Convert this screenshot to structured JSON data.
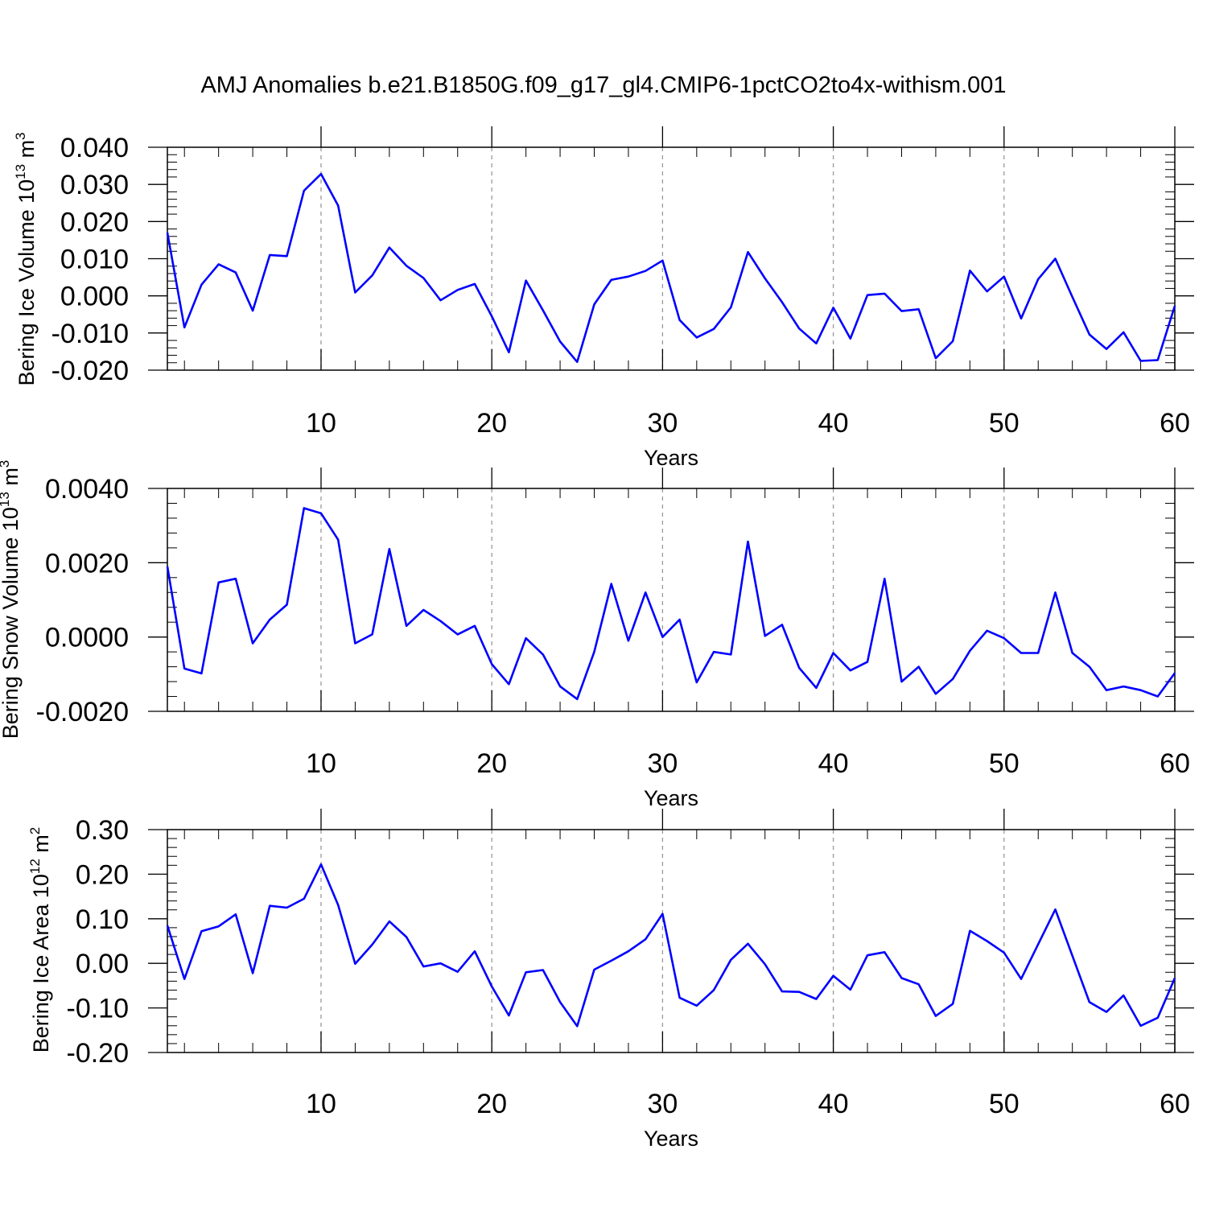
{
  "title": "AMJ Anomalies b.e21.B1850G.f09_g17_gl4.CMIP6-1pctCO2to4x-withism.001",
  "colors": {
    "line": "#0000ff",
    "axis": "#000000",
    "grid": "#999999"
  },
  "chart_data": [
    {
      "type": "line",
      "xlabel": "Years",
      "ylabel": {
        "base": "Bering Ice Volume 10",
        "exp": "13",
        "unit": " m",
        "unit_exp": "3"
      },
      "xlim": [
        1,
        60
      ],
      "ylim": [
        -0.02,
        0.04
      ],
      "yticks": [
        "-0.020",
        "-0.010",
        "0.000",
        "0.010",
        "0.020",
        "0.030",
        "0.040"
      ],
      "xticks": [
        "10",
        "20",
        "30",
        "40",
        "50",
        "60"
      ],
      "grid": "vertical dashed at major x ticks",
      "series": [
        {
          "x": [
            1,
            2,
            3,
            4,
            5,
            6,
            7,
            8,
            9,
            10,
            11,
            12,
            13,
            14,
            15,
            16,
            17,
            18,
            19,
            20,
            21,
            22,
            23,
            24,
            25,
            26,
            27,
            28,
            29,
            30,
            31,
            32,
            33,
            34,
            35,
            36,
            37,
            38,
            39,
            40,
            41,
            42,
            43,
            44,
            45,
            46,
            47,
            48,
            49,
            50,
            51,
            52,
            53,
            54,
            55,
            56,
            57,
            58,
            59,
            60
          ],
          "values": [
            0.017,
            -0.0085,
            0.003,
            0.0085,
            0.0063,
            -0.004,
            0.011,
            0.0107,
            0.0283,
            0.0328,
            0.0243,
            0.0009,
            0.0055,
            0.013,
            0.0081,
            0.0048,
            -0.0012,
            0.0016,
            0.0032,
            -0.0055,
            -0.0152,
            0.0041,
            -0.0039,
            -0.0123,
            -0.0178,
            -0.0023,
            0.0043,
            0.0052,
            0.0067,
            0.0095,
            -0.0065,
            -0.0112,
            -0.0089,
            -0.0031,
            0.0118,
            0.0047,
            -0.0017,
            -0.0088,
            -0.0128,
            -0.0032,
            -0.0115,
            0.0002,
            0.0006,
            -0.0041,
            -0.0036,
            -0.0168,
            -0.0122,
            0.0068,
            0.0012,
            0.0052,
            -0.0061,
            0.0045,
            0.01,
            -0.0003,
            -0.0104,
            -0.0143,
            -0.0098,
            -0.0175,
            -0.0173,
            -0.0027
          ]
        }
      ]
    },
    {
      "type": "line",
      "xlabel": "Years",
      "ylabel": {
        "base": "Bering Snow Volume 10",
        "exp": "13",
        "unit": " m",
        "unit_exp": "3"
      },
      "xlim": [
        1,
        60
      ],
      "ylim": [
        -0.002,
        0.004
      ],
      "yticks": [
        "-0.0020",
        "0.0000",
        "0.0020",
        "0.0040"
      ],
      "xticks": [
        "10",
        "20",
        "30",
        "40",
        "50",
        "60"
      ],
      "grid": "vertical dashed at major x ticks",
      "series": [
        {
          "x": [
            1,
            2,
            3,
            4,
            5,
            6,
            7,
            8,
            9,
            10,
            11,
            12,
            13,
            14,
            15,
            16,
            17,
            18,
            19,
            20,
            21,
            22,
            23,
            24,
            25,
            26,
            27,
            28,
            29,
            30,
            31,
            32,
            33,
            34,
            35,
            36,
            37,
            38,
            39,
            40,
            41,
            42,
            43,
            44,
            45,
            46,
            47,
            48,
            49,
            50,
            51,
            52,
            53,
            54,
            55,
            56,
            57,
            58,
            59,
            60
          ],
          "values": [
            0.0019,
            -0.00085,
            -0.00098,
            0.00147,
            0.00157,
            -0.00017,
            0.00047,
            0.00087,
            0.00347,
            0.00333,
            0.00262,
            -0.00017,
            7e-05,
            0.00237,
            0.0003,
            0.00073,
            0.00043,
            7e-05,
            0.0003,
            -0.00073,
            -0.00127,
            -3e-05,
            -0.00047,
            -0.00133,
            -0.00167,
            -0.0004,
            0.00143,
            -0.0001,
            0.0012,
            0,
            0.00047,
            -0.00122,
            -0.0004,
            -0.00047,
            0.00257,
            3e-05,
            0.00033,
            -0.00083,
            -0.00137,
            -0.00043,
            -0.0009,
            -0.00067,
            0.00157,
            -0.0012,
            -0.0008,
            -0.00153,
            -0.00113,
            -0.00037,
            0.00017,
            -3e-05,
            -0.00043,
            -0.00043,
            0.0012,
            -0.00043,
            -0.0008,
            -0.00143,
            -0.00133,
            -0.00143,
            -0.0016,
            -0.00097
          ]
        }
      ]
    },
    {
      "type": "line",
      "xlabel": "Years",
      "ylabel": {
        "base": "Bering Ice Area 10",
        "exp": "12",
        "unit": " m",
        "unit_exp": "2"
      },
      "xlim": [
        1,
        60
      ],
      "ylim": [
        -0.2,
        0.3
      ],
      "yticks": [
        "-0.20",
        "-0.10",
        "0.00",
        "0.10",
        "0.20",
        "0.30"
      ],
      "xticks": [
        "10",
        "20",
        "30",
        "40",
        "50",
        "60"
      ],
      "grid": "vertical dashed at major x ticks",
      "series": [
        {
          "x": [
            1,
            2,
            3,
            4,
            5,
            6,
            7,
            8,
            9,
            10,
            11,
            12,
            13,
            14,
            15,
            16,
            17,
            18,
            19,
            20,
            21,
            22,
            23,
            24,
            25,
            26,
            27,
            28,
            29,
            30,
            31,
            32,
            33,
            34,
            35,
            36,
            37,
            38,
            39,
            40,
            41,
            42,
            43,
            44,
            45,
            46,
            47,
            48,
            49,
            50,
            51,
            52,
            53,
            54,
            55,
            56,
            57,
            58,
            59,
            60
          ],
          "values": [
            0.085,
            -0.035,
            0.072,
            0.083,
            0.11,
            -0.022,
            0.129,
            0.125,
            0.145,
            0.222,
            0.131,
            -0.001,
            0.042,
            0.094,
            0.059,
            -0.007,
            0,
            -0.019,
            0.027,
            -0.052,
            -0.117,
            -0.02,
            -0.015,
            -0.087,
            -0.141,
            -0.014,
            0.006,
            0.027,
            0.054,
            0.111,
            -0.077,
            -0.095,
            -0.06,
            0.008,
            0.044,
            -0.002,
            -0.063,
            -0.064,
            -0.08,
            -0.028,
            -0.059,
            0.018,
            0.025,
            -0.033,
            -0.047,
            -0.118,
            -0.091,
            0.073,
            0.05,
            0.024,
            -0.035,
            0.043,
            0.121,
            0.017,
            -0.087,
            -0.109,
            -0.072,
            -0.14,
            -0.122,
            -0.033
          ]
        }
      ]
    }
  ]
}
